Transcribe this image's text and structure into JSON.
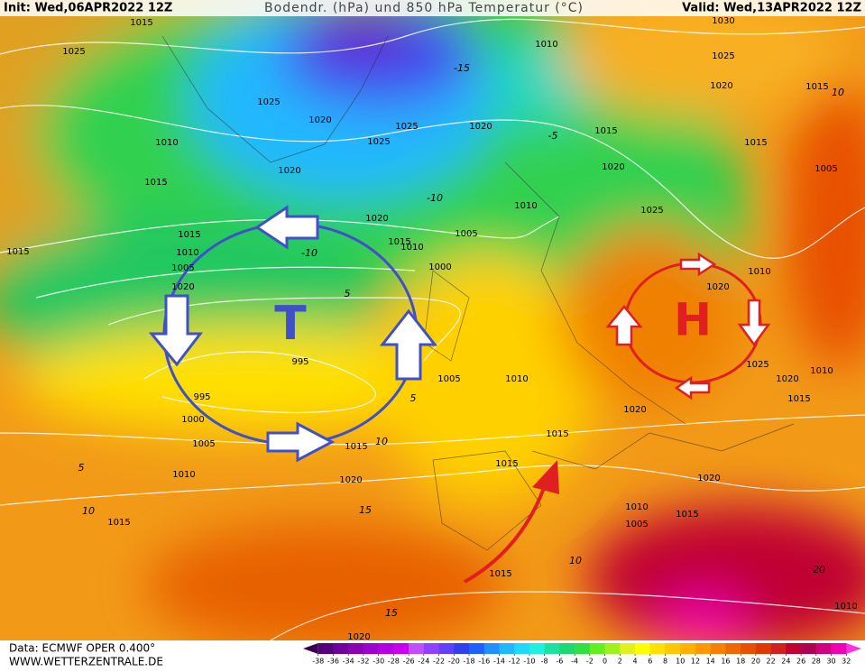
{
  "header": {
    "init": "Init: Wed,06APR2022 12Z",
    "title": "Bodendr. (hPa) und 850 hPa Temperatur (°C)",
    "valid": "Valid: Wed,13APR2022 12Z"
  },
  "footer": {
    "source": "Data: ECMWF OPER 0.400°",
    "site": "WWW.WETTERZENTRALE.DE"
  },
  "symbols": {
    "low": "T",
    "high": "H"
  },
  "isobar_labels": [
    "1025",
    "1015",
    "1010",
    "1015",
    "1025",
    "1020",
    "1020",
    "1025",
    "1025",
    "1020",
    "1020",
    "1015",
    "1010",
    "1005",
    "1000",
    "1010",
    "1010",
    "1015",
    "1020",
    "1025",
    "1030",
    "1025",
    "1020",
    "1015",
    "1015",
    "1005",
    "1010",
    "1020",
    "1025",
    "1010",
    "1020",
    "1015",
    "1015",
    "1010",
    "1005",
    "1020",
    "1015",
    "995",
    "995",
    "1000",
    "1005",
    "1010",
    "1015",
    "1020",
    "1015",
    "1005",
    "1010",
    "1020",
    "1015",
    "1015",
    "1010",
    "1005",
    "1015",
    "1020",
    "1015",
    "1020",
    "1010"
  ],
  "temperature_labels": [
    "-15",
    "-10",
    "-10",
    "5",
    "-5",
    "10",
    "10",
    "5",
    "10",
    "15",
    "5",
    "10",
    "15",
    "20"
  ],
  "colorbar": {
    "ticks": [
      -38,
      -36,
      -34,
      -32,
      -30,
      -28,
      -26,
      -24,
      -22,
      -20,
      -18,
      -16,
      -14,
      -12,
      -10,
      -8,
      -6,
      -4,
      -2,
      0,
      2,
      4,
      6,
      8,
      10,
      12,
      14,
      16,
      18,
      20,
      22,
      24,
      26,
      28,
      30,
      32
    ],
    "colors": [
      "#3a0050",
      "#55007a",
      "#70009a",
      "#8a00b4",
      "#a000cc",
      "#b400e0",
      "#c800f0",
      "#c050ff",
      "#9040ff",
      "#6040ff",
      "#3040f0",
      "#2060ff",
      "#2090ff",
      "#20b8ff",
      "#20d8ff",
      "#20f0e0",
      "#20e0a0",
      "#20d870",
      "#30e040",
      "#60f020",
      "#a0f020",
      "#e0f020",
      "#ffff00",
      "#ffe000",
      "#ffc800",
      "#ffb000",
      "#ff9800",
      "#f88000",
      "#f06800",
      "#e85000",
      "#e03800",
      "#d02020",
      "#c00030",
      "#b00050",
      "#d00080",
      "#f000b0",
      "#ff30e0"
    ]
  }
}
